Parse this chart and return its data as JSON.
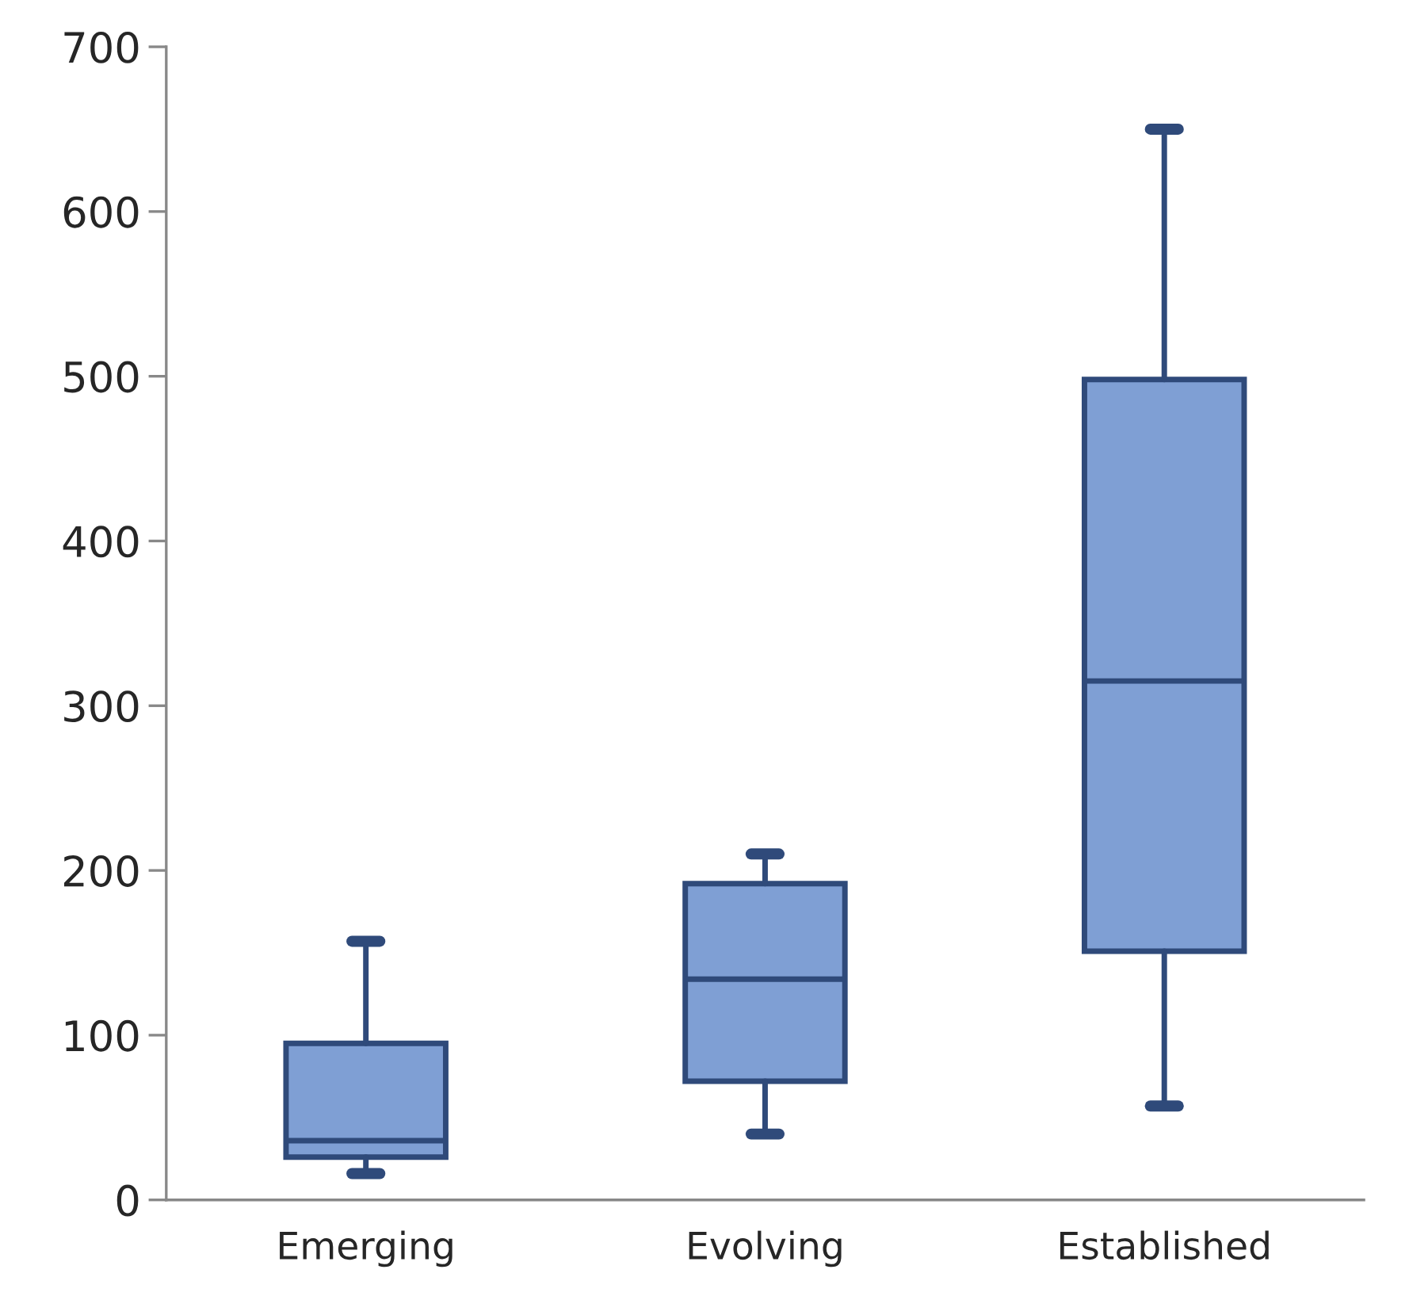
{
  "chart_data": {
    "type": "box",
    "categories": [
      "Emerging",
      "Evolving",
      "Established"
    ],
    "boxes": [
      {
        "low": 16,
        "q1": 26,
        "median": 36,
        "q3": 95,
        "high": 157
      },
      {
        "low": 40,
        "q1": 72,
        "median": 134,
        "q3": 192,
        "high": 210
      },
      {
        "low": 57,
        "q1": 151,
        "median": 315,
        "q3": 498,
        "high": 650
      }
    ],
    "color": "#7f9fd4",
    "ylim": [
      0,
      700
    ],
    "yticks": [
      0,
      100,
      200,
      300,
      400,
      500,
      600,
      700
    ],
    "grid": false
  }
}
